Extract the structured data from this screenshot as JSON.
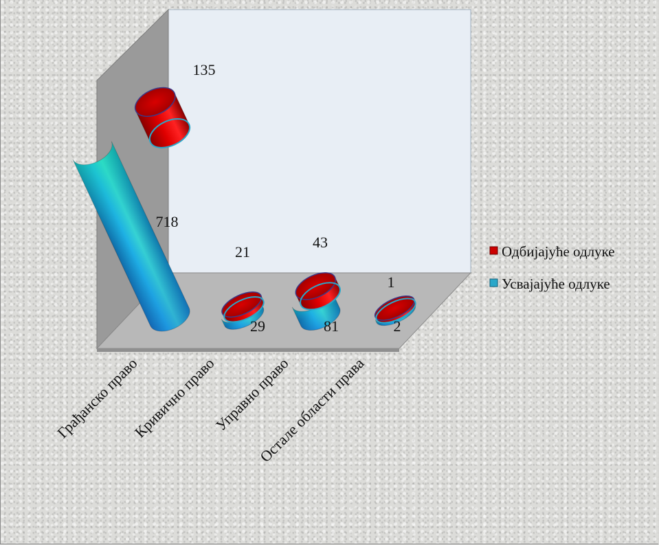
{
  "chart_data": {
    "type": "bar",
    "style": "3d-cylinder-stacked",
    "categories": [
      "Грађанско право",
      "Кривично право",
      "Управно право",
      "Остале области права"
    ],
    "series": [
      {
        "name": "Усвајајуће одлуке",
        "values": [
          718,
          29,
          81,
          2
        ],
        "color": "#1fa3c7"
      },
      {
        "name": "Одбијајуће одлуке",
        "values": [
          135,
          21,
          43,
          1
        ],
        "color": "#cc0000"
      }
    ],
    "legend": [
      "Одбијајуће одлуке",
      "Усвајајуће одлуке"
    ],
    "legend_position": "right",
    "data_labels": true,
    "grid": false
  }
}
